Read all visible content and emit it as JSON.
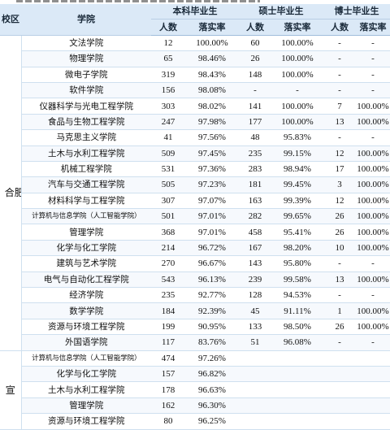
{
  "header": {
    "campus": "校区",
    "college": "学院",
    "undergrad": "本科毕业生",
    "master": "硕士毕业生",
    "doctor": "博士毕业生",
    "count": "人数",
    "rate": "落实率"
  },
  "hefei": {
    "campus_label": "合肥校区",
    "rows": [
      {
        "college": "文法学院",
        "u_n": "12",
        "u_r": "100.00%",
        "m_n": "60",
        "m_r": "100.00%",
        "d_n": "-",
        "d_r": "-"
      },
      {
        "college": "物理学院",
        "u_n": "65",
        "u_r": "98.46%",
        "m_n": "26",
        "m_r": "100.00%",
        "d_n": "-",
        "d_r": "-"
      },
      {
        "college": "微电子学院",
        "u_n": "319",
        "u_r": "98.43%",
        "m_n": "148",
        "m_r": "100.00%",
        "d_n": "-",
        "d_r": "-"
      },
      {
        "college": "软件学院",
        "u_n": "156",
        "u_r": "98.08%",
        "m_n": "-",
        "m_r": "-",
        "d_n": "-",
        "d_r": "-"
      },
      {
        "college": "仪器科学与光电工程学院",
        "u_n": "303",
        "u_r": "98.02%",
        "m_n": "141",
        "m_r": "100.00%",
        "d_n": "7",
        "d_r": "100.00%"
      },
      {
        "college": "食品与生物工程学院",
        "u_n": "247",
        "u_r": "97.98%",
        "m_n": "177",
        "m_r": "100.00%",
        "d_n": "13",
        "d_r": "100.00%"
      },
      {
        "college": "马克思主义学院",
        "u_n": "41",
        "u_r": "97.56%",
        "m_n": "48",
        "m_r": "95.83%",
        "d_n": "-",
        "d_r": "-"
      },
      {
        "college": "土木与水利工程学院",
        "u_n": "509",
        "u_r": "97.45%",
        "m_n": "235",
        "m_r": "99.15%",
        "d_n": "12",
        "d_r": "100.00%"
      },
      {
        "college": "机械工程学院",
        "u_n": "531",
        "u_r": "97.36%",
        "m_n": "283",
        "m_r": "98.94%",
        "d_n": "17",
        "d_r": "100.00%"
      },
      {
        "college": "汽车与交通工程学院",
        "u_n": "505",
        "u_r": "97.23%",
        "m_n": "181",
        "m_r": "99.45%",
        "d_n": "3",
        "d_r": "100.00%"
      },
      {
        "college": "材料科学与工程学院",
        "u_n": "307",
        "u_r": "97.07%",
        "m_n": "163",
        "m_r": "99.39%",
        "d_n": "12",
        "d_r": "100.00%"
      },
      {
        "college": "计算机与信息学院（人工智能学院）",
        "small": true,
        "u_n": "501",
        "u_r": "97.01%",
        "m_n": "282",
        "m_r": "99.65%",
        "d_n": "26",
        "d_r": "100.00%"
      },
      {
        "college": "管理学院",
        "u_n": "368",
        "u_r": "97.01%",
        "m_n": "458",
        "m_r": "95.41%",
        "d_n": "26",
        "d_r": "100.00%"
      },
      {
        "college": "化学与化工学院",
        "u_n": "214",
        "u_r": "96.72%",
        "m_n": "167",
        "m_r": "98.20%",
        "d_n": "10",
        "d_r": "100.00%"
      },
      {
        "college": "建筑与艺术学院",
        "u_n": "270",
        "u_r": "96.67%",
        "m_n": "143",
        "m_r": "95.80%",
        "d_n": "-",
        "d_r": "-"
      },
      {
        "college": "电气与自动化工程学院",
        "u_n": "543",
        "u_r": "96.13%",
        "m_n": "239",
        "m_r": "99.58%",
        "d_n": "13",
        "d_r": "100.00%"
      },
      {
        "college": "经济学院",
        "u_n": "235",
        "u_r": "92.77%",
        "m_n": "128",
        "m_r": "94.53%",
        "d_n": "-",
        "d_r": "-"
      },
      {
        "college": "数学学院",
        "u_n": "184",
        "u_r": "92.39%",
        "m_n": "45",
        "m_r": "91.11%",
        "d_n": "1",
        "d_r": "100.00%"
      },
      {
        "college": "资源与环境工程学院",
        "u_n": "199",
        "u_r": "90.95%",
        "m_n": "133",
        "m_r": "98.50%",
        "d_n": "26",
        "d_r": "100.00%"
      },
      {
        "college": "外国语学院",
        "u_n": "117",
        "u_r": "83.76%",
        "m_n": "51",
        "m_r": "96.08%",
        "d_n": "-",
        "d_r": "-"
      }
    ]
  },
  "xuancheng": {
    "campus_label": "宣",
    "rows": [
      {
        "college": "计算机与信息学院（人工智能学院）",
        "small": true,
        "u_n": "474",
        "u_r": "97.26%"
      },
      {
        "college": "化学与化工学院",
        "u_n": "157",
        "u_r": "96.82%"
      },
      {
        "college": "土木与水利工程学院",
        "u_n": "178",
        "u_r": "96.63%"
      },
      {
        "college": "管理学院",
        "u_n": "162",
        "u_r": "96.30%"
      },
      {
        "college": "资源与环境工程学院",
        "u_n": "80",
        "u_r": "96.25%"
      }
    ]
  }
}
